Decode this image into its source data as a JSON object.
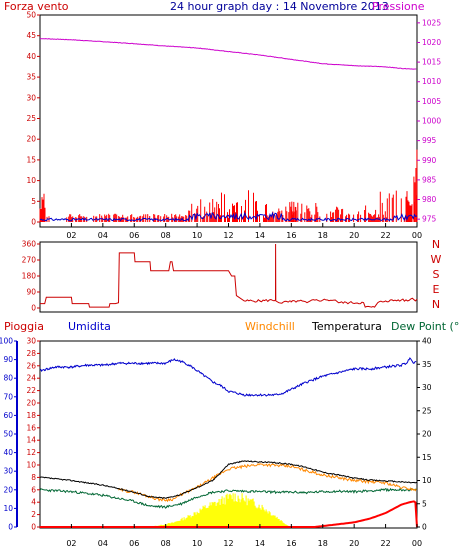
{
  "header": {
    "wind_label": "Forza vento",
    "title": "24 hour graph day : 14 Novembre 2013",
    "pressure_label": "Pressione"
  },
  "bottom_header": {
    "rain_label": "Pioggia",
    "humidity_label": "Umidita",
    "windchill_label": "Windchill",
    "temperature_label": "Temperatura",
    "dewpoint_label": "Dew Point (°C"
  },
  "compass": [
    "N",
    "W",
    "S",
    "E",
    "N"
  ],
  "colors": {
    "wind": "#ff0000",
    "gust": "#0000cc",
    "pressure": "#cc00cc",
    "direction": "#cc0000",
    "humidity": "#0000cc",
    "temperature": "#000000",
    "windchill": "#ff8800",
    "dewpoint": "#006633",
    "solar": "#ffff00",
    "rain": "#ff0000",
    "rain_axis": "#cc0000",
    "title": "#000099"
  },
  "chart_data": [
    {
      "type": "bar",
      "x_ticks": [
        "02",
        "04",
        "06",
        "08",
        "10",
        "12",
        "14",
        "16",
        "18",
        "20",
        "22",
        "00"
      ],
      "xlim": [
        0,
        24
      ],
      "left_axis": {
        "ticks": [
          "0",
          "5",
          "10",
          "15",
          "20",
          "25",
          "30",
          "35",
          "40",
          "45",
          "50"
        ],
        "ylim": [
          0,
          50
        ]
      },
      "right_axis": {
        "ticks": [
          "975",
          "980",
          "985",
          "990",
          "995",
          "1000",
          "1005",
          "1010",
          "1015",
          "1020",
          "1025"
        ],
        "ylim": [
          973,
          1027
        ]
      },
      "grid": false,
      "series": [
        {
          "name": "Forza vento",
          "kind": "bar",
          "segments": [
            [
              0,
              0.7,
              3,
              0.4
            ],
            [
              1.7,
              7.3,
              2,
              0.6
            ],
            [
              7.3,
              9.4,
              2,
              0.6
            ],
            [
              9.4,
              11.3,
              6,
              0.7
            ],
            [
              11.3,
              14.5,
              8,
              0.6
            ],
            [
              14.5,
              15.2,
              3,
              0.8
            ],
            [
              15.2,
              18.5,
              5,
              0.6
            ],
            [
              18.5,
              21.6,
              4,
              0.7
            ],
            [
              21.6,
              24,
              9,
              0.6
            ]
          ],
          "bursts": [
            [
              0,
              0.35,
              7,
              1
            ],
            [
              16,
              16.35,
              4,
              1
            ],
            [
              23.3,
              23.7,
              9,
              1
            ],
            [
              23.8,
              24,
              18,
              1
            ]
          ]
        },
        {
          "name": "Pressione",
          "kind": "line",
          "x": [
            0,
            2,
            4,
            6,
            8,
            10,
            12,
            14,
            16,
            18,
            20,
            22,
            23,
            24
          ],
          "y": [
            1021.0,
            1020.7,
            1020.2,
            1019.7,
            1019.1,
            1018.6,
            1017.7,
            1016.8,
            1015.7,
            1014.6,
            1014.1,
            1013.8,
            1013.4,
            1013.2
          ]
        }
      ]
    },
    {
      "type": "line",
      "x_ticks": [
        "02",
        "04",
        "06",
        "08",
        "10",
        "12",
        "14",
        "16",
        "18",
        "20",
        "22",
        "00"
      ],
      "xlim": [
        0,
        24
      ],
      "left_axis": {
        "ticks": [
          "0",
          "90",
          "180",
          "270",
          "360"
        ],
        "ylim": [
          0,
          360
        ]
      },
      "series": [
        {
          "name": "direction",
          "x": [
            0,
            0.3,
            0.4,
            2.0,
            2.05,
            3.1,
            3.15,
            4.4,
            4.45,
            4.8,
            5.0,
            5.05,
            6.0,
            6.05,
            7.0,
            7.05,
            8.2,
            8.3,
            8.4,
            8.5,
            10.0,
            12.0,
            12.2,
            12.4,
            12.5,
            13.0,
            14.0,
            14.99,
            15.0,
            15.01,
            15.2,
            16.0,
            16.5,
            17.0,
            17.2,
            18.0,
            18.3,
            18.8,
            19.0,
            20.6,
            20.7,
            21.3,
            21.5,
            22.0,
            23.0,
            23.4,
            23.7,
            23.9,
            24.0
          ],
          "y": [
            25,
            25,
            60,
            60,
            25,
            25,
            5,
            5,
            25,
            25,
            30,
            310,
            310,
            260,
            260,
            210,
            210,
            260,
            260,
            210,
            210,
            210,
            180,
            180,
            70,
            40,
            40,
            45,
            360,
            40,
            30,
            35,
            40,
            30,
            40,
            45,
            45,
            45,
            30,
            30,
            5,
            5,
            30,
            40,
            45,
            40,
            55,
            40,
            50
          ]
        }
      ]
    },
    {
      "type": "line",
      "x_ticks": [
        "02",
        "04",
        "06",
        "08",
        "10",
        "12",
        "14",
        "16",
        "18",
        "20",
        "22",
        "00"
      ],
      "xlim": [
        0,
        24
      ],
      "humidity_axis": {
        "ticks": [
          "0",
          "10",
          "20",
          "30",
          "40",
          "50",
          "60",
          "70",
          "80",
          "90",
          "100"
        ],
        "ylim": [
          0,
          100
        ]
      },
      "rain_axis": {
        "ticks": [
          "0",
          "2",
          "4",
          "6",
          "8",
          "10",
          "12",
          "14",
          "16",
          "18",
          "20",
          "22",
          "24",
          "26",
          "28",
          "30"
        ],
        "ylim": [
          0,
          30
        ]
      },
      "temperature_axis": {
        "ticks": [
          "0",
          "5",
          "10",
          "15",
          "20",
          "25",
          "30",
          "35",
          "40"
        ],
        "ylim": [
          0,
          40
        ]
      },
      "series": [
        {
          "name": "Umidita",
          "x": [
            0,
            1,
            2,
            3,
            4,
            5,
            6,
            7,
            8,
            8.5,
            9,
            9.5,
            10,
            10.5,
            11,
            11.5,
            12,
            12.5,
            13,
            13.5,
            14,
            15,
            15.5,
            16,
            17,
            18,
            19,
            20,
            21,
            22,
            23,
            23.3,
            23.6,
            23.8,
            24
          ],
          "y": [
            84,
            86,
            86,
            87,
            87,
            88,
            88,
            88,
            88,
            90,
            89,
            87,
            84,
            81,
            78,
            76,
            73,
            72,
            71,
            71,
            71,
            71,
            72,
            74,
            78,
            81,
            83,
            85,
            85,
            86,
            87,
            88,
            91,
            88,
            90
          ]
        },
        {
          "name": "Temperatura",
          "x": [
            0,
            2,
            4,
            6,
            7,
            8,
            9,
            10,
            11,
            12,
            13,
            14,
            15,
            16,
            17,
            18,
            19,
            20,
            21,
            22,
            23,
            24
          ],
          "y": [
            10.7,
            10.0,
            9.0,
            7.5,
            6.5,
            6.2,
            7.0,
            8.5,
            10.0,
            13.5,
            14.2,
            14.0,
            13.8,
            13.5,
            12.8,
            11.8,
            11.2,
            10.5,
            10.1,
            9.9,
            9.7,
            9.5
          ]
        },
        {
          "name": "Windchill",
          "x": [
            5,
            6,
            7,
            7.5,
            8,
            8.5,
            9,
            10,
            12,
            14,
            16,
            18,
            20,
            22,
            23,
            24
          ],
          "y": [
            8.0,
            7.5,
            6.5,
            6.0,
            5.8,
            6.0,
            7.0,
            8.5,
            12.5,
            13.5,
            13.0,
            11.2,
            10.0,
            9.5,
            8.5,
            8.0
          ]
        },
        {
          "name": "Dew Point",
          "x": [
            0,
            2,
            4,
            6,
            7,
            8,
            9,
            10,
            11,
            12,
            13,
            14,
            15,
            16,
            17,
            18,
            19,
            20,
            21,
            22,
            23,
            24
          ],
          "y": [
            8.0,
            7.6,
            6.8,
            5.5,
            4.5,
            4.3,
            5.0,
            6.5,
            7.5,
            7.8,
            7.7,
            7.6,
            7.5,
            7.5,
            7.4,
            7.6,
            7.7,
            7.6,
            7.8,
            8.0,
            8.0,
            8.0
          ]
        },
        {
          "name": "solar",
          "x": [
            6.5,
            7.5,
            8.5,
            9.5,
            10.5,
            11.5,
            12.3,
            13.0,
            14.0,
            15.0,
            15.7,
            16.0
          ],
          "y": [
            0,
            0.3,
            1.0,
            2.5,
            4.5,
            6.0,
            7.2,
            6.5,
            5.0,
            2.5,
            0.5,
            0
          ]
        },
        {
          "name": "Pioggia",
          "x": [
            0,
            17.5,
            18,
            19,
            20,
            21,
            22,
            23,
            23.5,
            23.8,
            23.95,
            24
          ],
          "y": [
            0,
            0,
            0.2,
            0.6,
            1.0,
            1.8,
            3.0,
            4.8,
            5.3,
            5.5,
            5.2,
            0
          ]
        }
      ]
    }
  ]
}
